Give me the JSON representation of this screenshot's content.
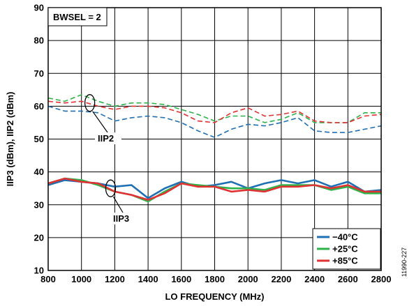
{
  "chart_data": {
    "type": "line",
    "xlabel": "LO FREQUENCY (MHz)",
    "ylabel": "IIP3 (dBm), IIP2 (dBm)",
    "xlim": [
      800,
      2800
    ],
    "ylim": [
      10,
      90
    ],
    "x_ticks": [
      800,
      1000,
      1200,
      1400,
      1600,
      1800,
      2000,
      2200,
      2400,
      2600,
      2800
    ],
    "y_ticks": [
      10,
      20,
      30,
      40,
      50,
      60,
      70,
      80,
      90
    ],
    "grid": true,
    "legend_position": "bottom-right",
    "annotations": {
      "bwsel": "BWSEL = 2",
      "iip2": "IIP2",
      "iip3": "IIP3",
      "figure_id": "11990-227"
    },
    "x": [
      800,
      900,
      1000,
      1100,
      1200,
      1300,
      1400,
      1500,
      1600,
      1700,
      1800,
      1900,
      2000,
      2100,
      2200,
      2300,
      2400,
      2500,
      2600,
      2700,
      2800
    ],
    "series": [
      {
        "name": "−40°C",
        "color": "#1f6fb4",
        "metric": "IIP3",
        "style": "solid",
        "values": [
          36.0,
          37.5,
          37.0,
          36.5,
          35.5,
          36.0,
          32.0,
          35.0,
          37.0,
          35.5,
          36.0,
          37.0,
          35.0,
          36.5,
          37.5,
          36.5,
          37.5,
          35.5,
          37.0,
          34.0,
          34.5
        ]
      },
      {
        "name": "+25°C",
        "color": "#2db34a",
        "metric": "IIP3",
        "style": "solid",
        "values": [
          36.5,
          38.0,
          37.5,
          36.0,
          34.0,
          33.0,
          31.0,
          34.0,
          36.5,
          36.0,
          35.5,
          35.0,
          35.0,
          34.5,
          36.0,
          36.0,
          36.0,
          34.5,
          35.5,
          33.5,
          33.5
        ]
      },
      {
        "name": "+85°C",
        "color": "#e03232",
        "metric": "IIP3",
        "style": "solid",
        "values": [
          36.5,
          38.0,
          37.0,
          36.5,
          34.0,
          33.0,
          31.5,
          33.5,
          36.5,
          35.5,
          35.5,
          34.0,
          34.5,
          34.0,
          35.5,
          35.5,
          36.0,
          35.0,
          36.0,
          34.0,
          34.0
        ]
      },
      {
        "name": "−40°C",
        "color": "#1f6fb4",
        "metric": "IIP2",
        "style": "dashed",
        "values": [
          60.0,
          58.5,
          58.5,
          58.0,
          55.5,
          56.5,
          57.0,
          56.5,
          55.0,
          52.5,
          50.5,
          53.0,
          54.5,
          54.0,
          55.0,
          56.5,
          52.5,
          52.0,
          52.0,
          53.0,
          54.0
        ]
      },
      {
        "name": "+25°C",
        "color": "#2db34a",
        "metric": "IIP2",
        "style": "dashed",
        "values": [
          62.5,
          61.5,
          63.5,
          61.5,
          60.0,
          61.0,
          61.0,
          60.5,
          59.0,
          57.5,
          55.5,
          57.0,
          57.0,
          55.0,
          56.0,
          58.0,
          55.0,
          55.0,
          55.0,
          58.0,
          58.0
        ]
      },
      {
        "name": "+85°C",
        "color": "#e03232",
        "metric": "IIP2",
        "style": "dashed",
        "values": [
          61.5,
          61.0,
          61.5,
          60.0,
          59.0,
          60.0,
          60.0,
          59.5,
          58.0,
          55.5,
          55.0,
          58.0,
          59.5,
          57.0,
          57.5,
          58.5,
          55.5,
          55.0,
          55.0,
          57.0,
          57.5
        ]
      }
    ],
    "legend": [
      {
        "label": "−40°C",
        "color": "#1f6fb4"
      },
      {
        "label": "+25°C",
        "color": "#2db34a"
      },
      {
        "label": "+85°C",
        "color": "#e03232"
      }
    ]
  }
}
